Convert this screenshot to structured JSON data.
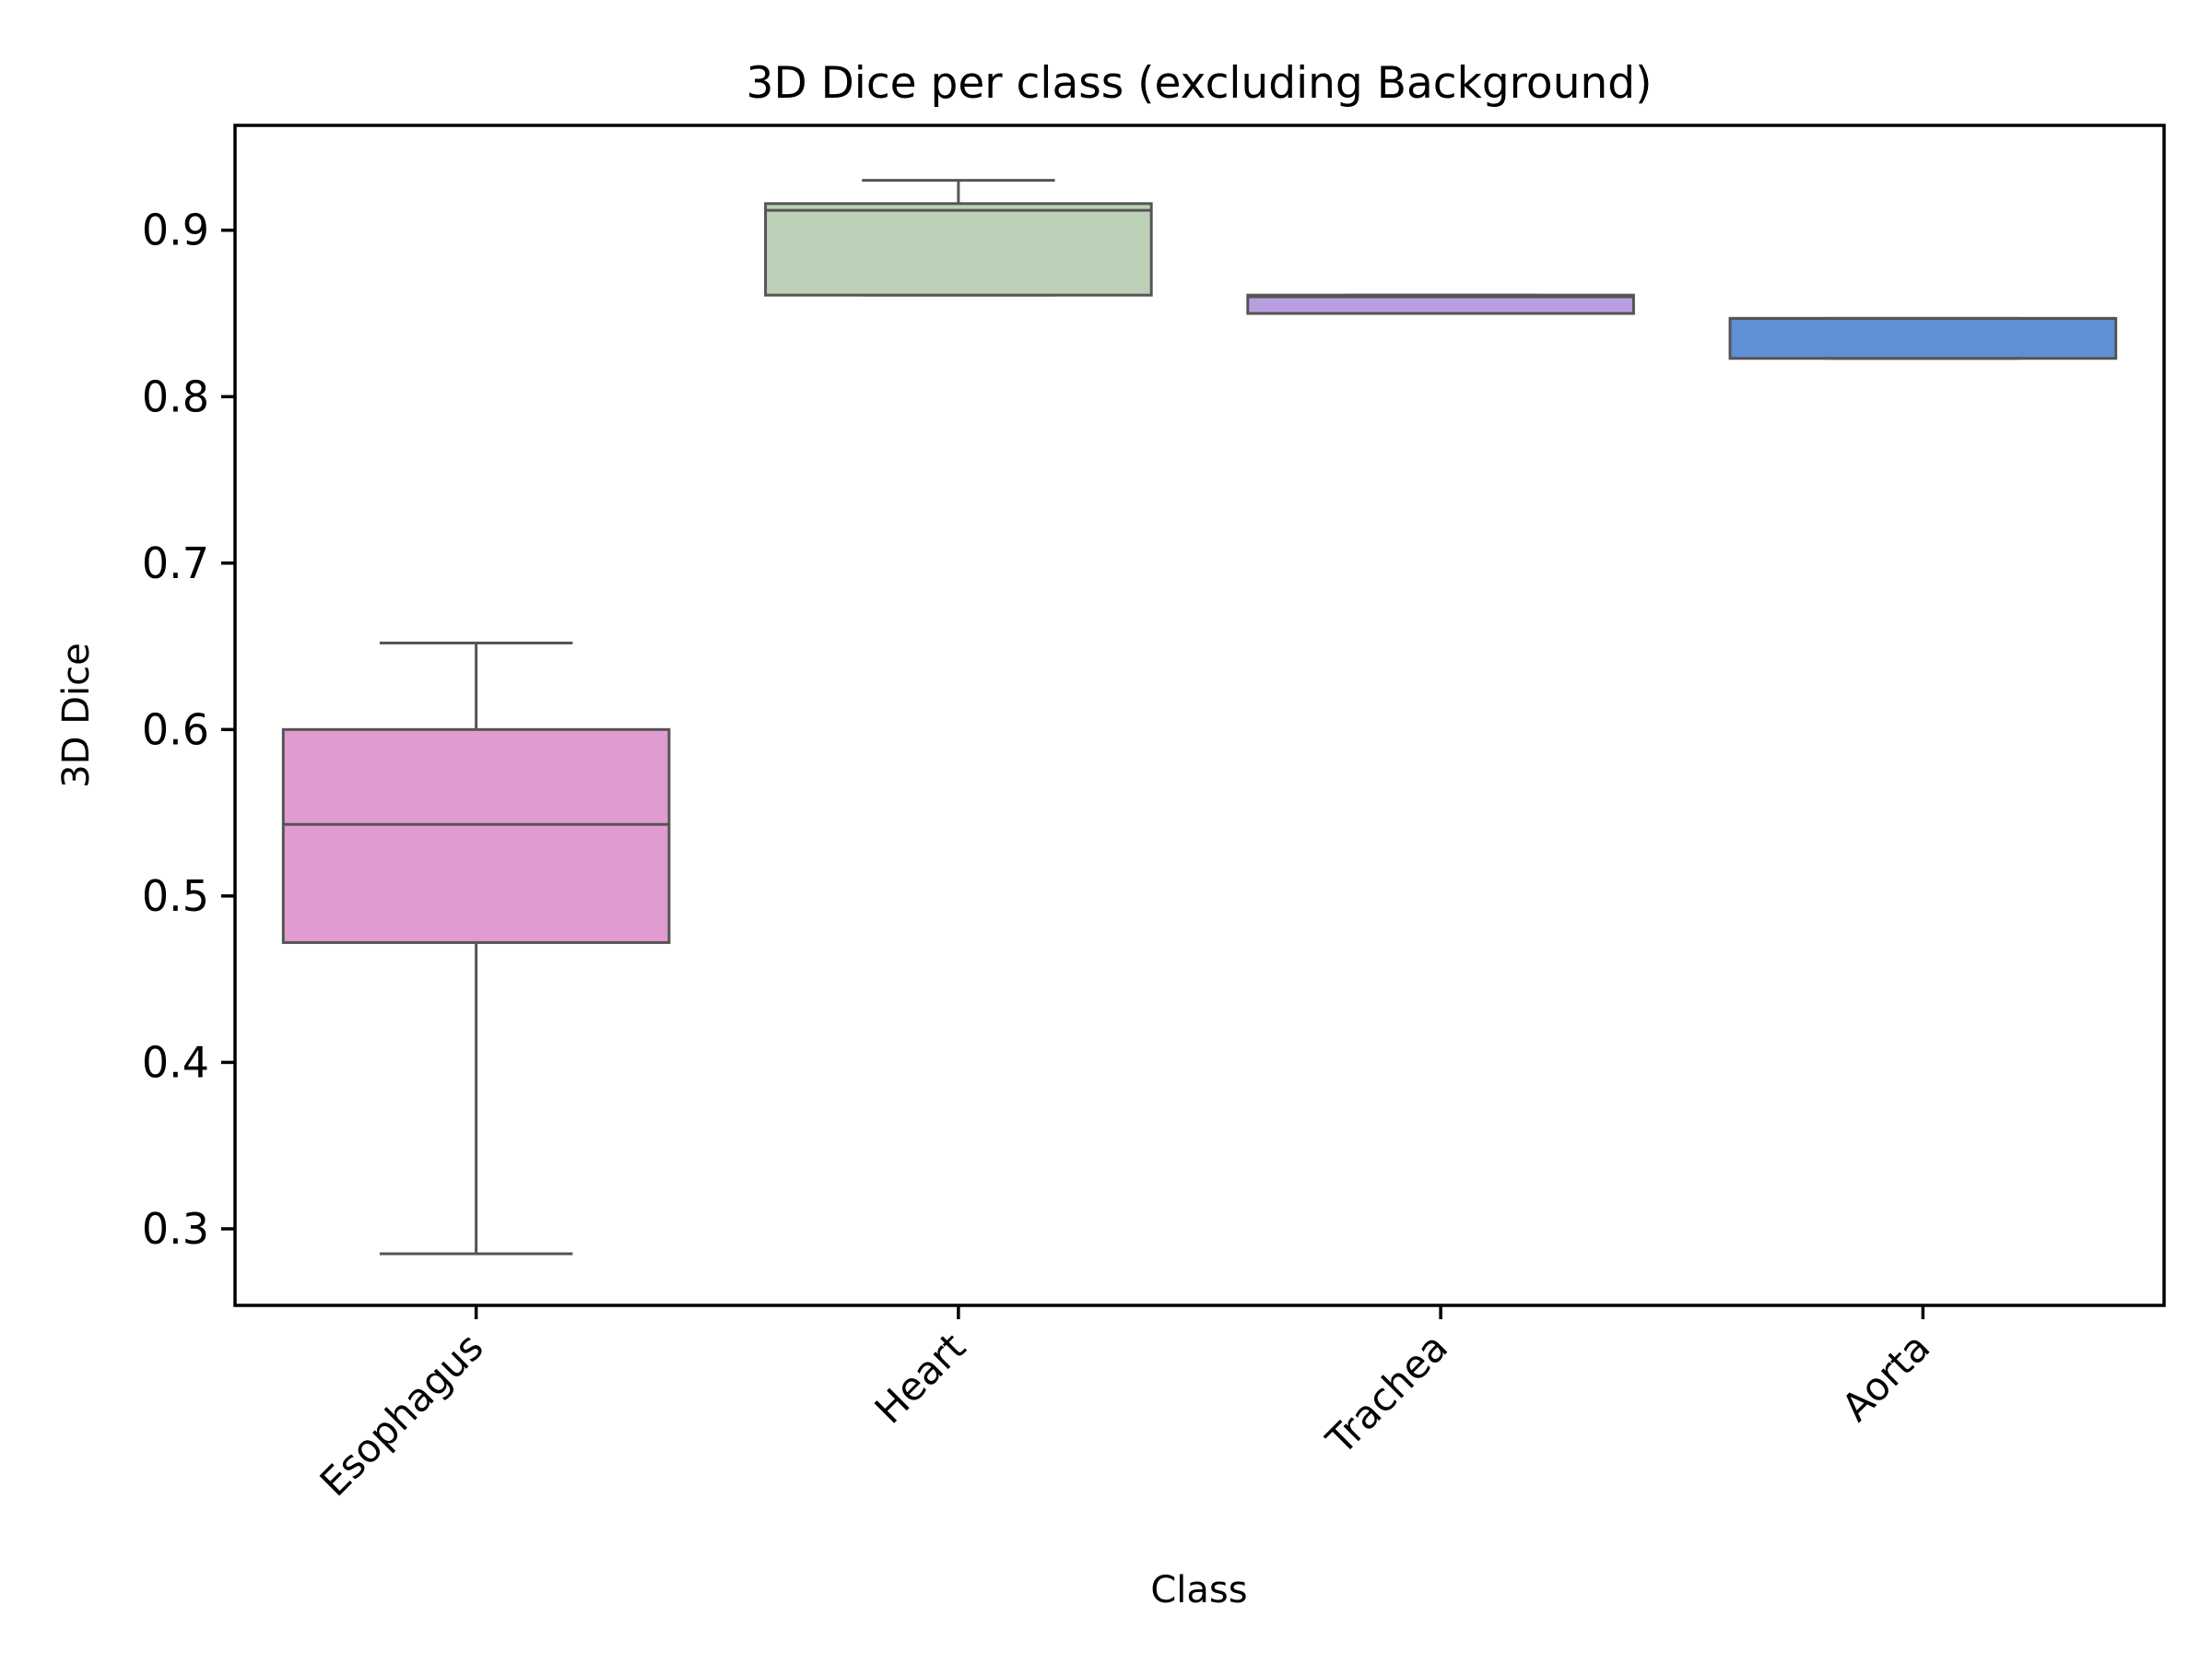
{
  "chart_data": {
    "type": "box",
    "title": "3D Dice per class (excluding Background)",
    "xlabel": "Class",
    "ylabel": "3D Dice",
    "ylim": [
      0.254,
      0.963
    ],
    "yticks": [
      0.3,
      0.4,
      0.5,
      0.6,
      0.7,
      0.8,
      0.9
    ],
    "ytick_labels": [
      "0.3",
      "0.4",
      "0.5",
      "0.6",
      "0.7",
      "0.8",
      "0.9"
    ],
    "grid": false,
    "categories": [
      "Esophagus",
      "Heart",
      "Trachea",
      "Aorta"
    ],
    "boxes": [
      {
        "category": "Esophagus",
        "whisker_low": 0.285,
        "q1": 0.472,
        "median": 0.543,
        "q3": 0.6,
        "whisker_high": 0.652,
        "color": "#e09bd0"
      },
      {
        "category": "Heart",
        "whisker_low": 0.861,
        "q1": 0.861,
        "median": 0.912,
        "q3": 0.916,
        "whisker_high": 0.93,
        "color": "#bcd0b7"
      },
      {
        "category": "Trachea",
        "whisker_low": 0.85,
        "q1": 0.85,
        "median": 0.86,
        "q3": 0.861,
        "whisker_high": 0.861,
        "color": "#b99fe0"
      },
      {
        "category": "Aorta",
        "whisker_low": 0.823,
        "q1": 0.823,
        "median": 0.847,
        "q3": 0.847,
        "whisker_high": 0.847,
        "color": "#5f8fd4"
      }
    ]
  }
}
